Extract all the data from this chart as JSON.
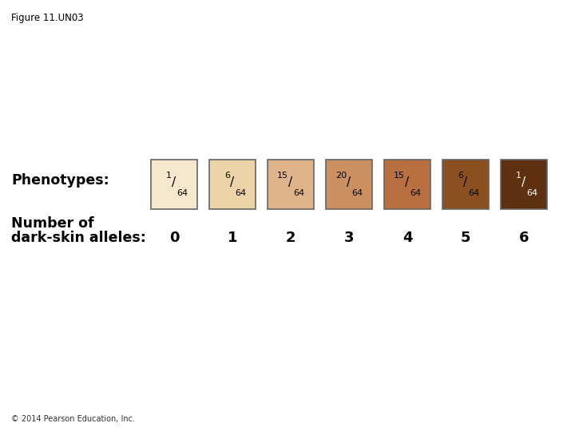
{
  "title": "Figure 11.UN03",
  "copyright": "© 2014 Pearson Education, Inc.",
  "phenotypes_label": "Phenotypes:",
  "alleles_label_line1": "Number of",
  "alleles_label_line2": "dark-skin alleles:",
  "boxes": [
    {
      "color": "#F5E8CC",
      "numerator": "1",
      "denominator": "64",
      "allele": "0",
      "text_color": "#000000"
    },
    {
      "color": "#EDD4A8",
      "numerator": "6",
      "denominator": "64",
      "allele": "1",
      "text_color": "#000000"
    },
    {
      "color": "#E0B48A",
      "numerator": "15",
      "denominator": "64",
      "allele": "2",
      "text_color": "#000000"
    },
    {
      "color": "#CC8F60",
      "numerator": "20",
      "denominator": "64",
      "allele": "3",
      "text_color": "#000000"
    },
    {
      "color": "#B87040",
      "numerator": "15",
      "denominator": "64",
      "allele": "4",
      "text_color": "#000000"
    },
    {
      "color": "#8B5020",
      "numerator": "6",
      "denominator": "64",
      "allele": "5",
      "text_color": "#000000"
    },
    {
      "color": "#5C3010",
      "numerator": "1",
      "denominator": "64",
      "allele": "6",
      "text_color": "#FFFFFF"
    }
  ],
  "background_color": "#FFFFFF",
  "figure_title_fontsize": 8.5,
  "label_fontsize": 12.5,
  "allele_number_fontsize": 13,
  "copyright_fontsize": 7
}
